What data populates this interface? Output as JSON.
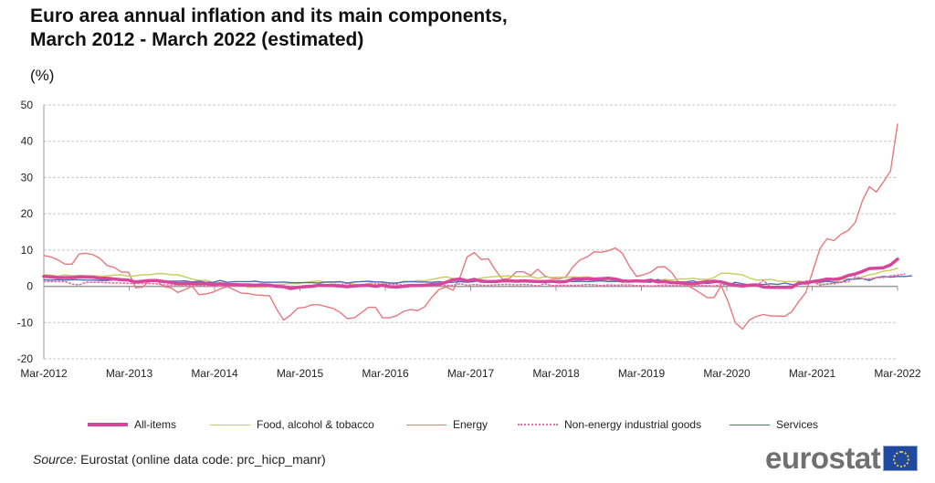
{
  "header": {
    "title_line1": "Euro area annual inflation and its main components,",
    "title_line2": "March 2012 - March 2022 (estimated)",
    "unit": "(%)"
  },
  "footer": {
    "source_label": "Source:",
    "source_text": " Eurostat (online data code: prc_hicp_manr)",
    "logo_text": "eurostat",
    "logo_icon": "eu-flag-icon"
  },
  "chart_data": {
    "type": "line",
    "title": "Euro area annual inflation and its main components, March 2012 - March 2022 (estimated)",
    "ylabel": "(%)",
    "xlabel": "",
    "ylim": [
      -20,
      50
    ],
    "yticks": [
      -20,
      -10,
      0,
      10,
      20,
      30,
      40,
      50
    ],
    "xtick_labels": [
      "Mar-2012",
      "Mar-2013",
      "Mar-2014",
      "Mar-2015",
      "Mar-2016",
      "Mar-2017",
      "Mar-2018",
      "Mar-2019",
      "Mar-2020",
      "Mar-2021",
      "Mar-2022"
    ],
    "x_start": "Mar-2012",
    "x_end": "Mar-2022",
    "frequency": "monthly",
    "grid": "horizontal dashed",
    "legend_position": "bottom",
    "series": [
      {
        "name": "All-items",
        "color": "#d6479b",
        "style": "thick",
        "values": [
          2.7,
          2.6,
          2.4,
          2.4,
          2.4,
          2.6,
          2.6,
          2.5,
          2.2,
          2.2,
          2.0,
          1.8,
          1.7,
          1.2,
          1.4,
          1.6,
          1.6,
          1.3,
          1.1,
          0.7,
          0.8,
          0.8,
          0.7,
          0.8,
          0.5,
          0.7,
          0.5,
          0.5,
          0.4,
          0.4,
          0.3,
          0.4,
          0.3,
          0.0,
          -0.1,
          -0.6,
          -0.3,
          -0.1,
          0.0,
          0.3,
          0.2,
          0.2,
          0.1,
          -0.1,
          0.1,
          0.2,
          0.3,
          0.0,
          0.3,
          -0.1,
          -0.2,
          0.0,
          0.2,
          0.2,
          0.3,
          0.5,
          0.6,
          1.1,
          1.8,
          2.0,
          1.5,
          1.9,
          1.4,
          1.3,
          1.3,
          1.5,
          1.5,
          1.4,
          1.5,
          1.4,
          1.3,
          1.3,
          1.4,
          1.2,
          1.3,
          2.0,
          2.0,
          2.1,
          2.0,
          2.1,
          2.2,
          2.0,
          1.5,
          1.4,
          1.5,
          1.4,
          1.7,
          1.2,
          1.3,
          1.0,
          1.0,
          0.8,
          0.7,
          1.0,
          1.3,
          1.4,
          1.2,
          0.7,
          0.3,
          0.1,
          0.3,
          0.4,
          -0.2,
          -0.3,
          -0.3,
          -0.3,
          -0.3,
          0.9,
          0.9,
          1.3,
          1.6,
          2.0,
          1.9,
          2.2,
          3.0,
          3.4,
          4.1,
          4.9,
          5.0,
          5.1,
          5.9,
          7.5
        ]
      },
      {
        "name": "Food, alcohol & tobacco",
        "color": "#c8cc5a",
        "style": "thin",
        "values": [
          3.2,
          3.1,
          2.8,
          3.2,
          2.9,
          3.0,
          2.9,
          2.9,
          2.8,
          2.9,
          3.1,
          3.2,
          2.7,
          2.9,
          3.2,
          3.2,
          3.5,
          3.5,
          3.2,
          3.2,
          2.6,
          2.0,
          1.6,
          1.7,
          1.0,
          0.7,
          0.1,
          0.2,
          0.3,
          -0.3,
          -0.1,
          -0.3,
          0.0,
          0.5,
          0.6,
          0.8,
          0.7,
          1.1,
          1.3,
          1.5,
          1.1,
          1.0,
          1.2,
          0.9,
          0.6,
          0.3,
          0.8,
          1.3,
          0.9,
          0.9,
          0.8,
          1.4,
          1.3,
          1.6,
          1.5,
          1.9,
          2.3,
          2.6,
          2.1,
          1.6,
          1.6,
          1.8,
          2.3,
          2.5,
          2.7,
          2.8,
          2.9,
          2.7,
          2.7,
          2.7,
          2.2,
          2.6,
          2.4,
          2.5,
          2.4,
          2.6,
          2.5,
          2.6,
          2.3,
          1.8,
          1.5,
          1.5,
          1.0,
          1.6,
          1.7,
          1.6,
          1.4,
          1.6,
          1.9,
          1.7,
          2.0,
          2.0,
          2.2,
          1.9,
          1.9,
          2.4,
          3.6,
          3.6,
          3.4,
          3.2,
          2.3,
          1.7,
          1.8,
          1.9,
          1.5,
          1.3,
          1.3,
          1.4,
          1.2,
          1.1,
          0.7,
          0.5,
          0.9,
          1.9,
          2.0,
          2.0,
          2.6,
          3.2,
          3.5,
          4.2,
          4.4,
          5.0
        ]
      },
      {
        "name": "Energy",
        "color": "#e8777f",
        "style": "thin",
        "values": [
          8.5,
          8.1,
          7.3,
          6.1,
          6.1,
          8.9,
          9.1,
          8.7,
          7.6,
          5.7,
          5.2,
          3.9,
          3.9,
          -0.4,
          -0.2,
          1.6,
          1.6,
          -0.1,
          -0.4,
          -1.7,
          -0.9,
          0.0,
          -2.3,
          -2.1,
          -1.6,
          -0.7,
          -0.1,
          -1.0,
          -1.9,
          -2.0,
          -2.4,
          -2.5,
          -2.6,
          -6.3,
          -9.3,
          -7.9,
          -6.0,
          -5.8,
          -5.1,
          -5.1,
          -5.6,
          -6.1,
          -7.2,
          -8.9,
          -8.7,
          -7.3,
          -5.8,
          -5.8,
          -8.7,
          -8.7,
          -8.1,
          -6.9,
          -6.4,
          -6.7,
          -5.6,
          -3.0,
          -0.9,
          -0.2,
          -1.1,
          2.6,
          8.1,
          9.3,
          7.4,
          7.6,
          4.5,
          1.9,
          2.2,
          4.0,
          4.0,
          3.0,
          4.7,
          2.9,
          2.2,
          2.0,
          2.6,
          5.4,
          7.3,
          8.1,
          9.5,
          9.4,
          9.8,
          10.6,
          9.1,
          5.5,
          2.7,
          3.2,
          3.9,
          5.3,
          5.4,
          3.8,
          1.0,
          0.5,
          -0.6,
          -1.8,
          -3.1,
          -3.1,
          0.2,
          -4.3,
          -10.0,
          -11.8,
          -9.3,
          -8.3,
          -7.8,
          -8.2,
          -8.2,
          -8.3,
          -7.0,
          -4.2,
          -1.7,
          4.3,
          10.4,
          13.1,
          12.6,
          14.4,
          15.4,
          17.6,
          23.5,
          27.5,
          26.0,
          28.8,
          31.8,
          44.7
        ]
      },
      {
        "name": "Non-energy industrial goods",
        "color": "#e06fa7",
        "style": "dotted",
        "values": [
          1.3,
          1.3,
          1.3,
          1.3,
          0.6,
          0.4,
          1.1,
          1.1,
          1.1,
          1.0,
          0.9,
          0.9,
          0.8,
          0.8,
          0.8,
          0.8,
          0.7,
          0.4,
          0.4,
          0.4,
          0.3,
          0.2,
          0.4,
          0.2,
          0.1,
          0.1,
          0.0,
          0.2,
          0.1,
          0.0,
          -0.1,
          0.1,
          -0.1,
          0.1,
          0.0,
          0.0,
          -0.1,
          0.2,
          0.3,
          0.4,
          0.4,
          0.6,
          0.5,
          0.7,
          0.3,
          0.4,
          0.5,
          0.7,
          0.5,
          0.6,
          0.5,
          0.4,
          0.5,
          0.4,
          0.3,
          0.3,
          0.3,
          0.3,
          0.3,
          0.7,
          0.3,
          0.5,
          0.3,
          0.3,
          0.4,
          0.5,
          0.5,
          0.4,
          0.5,
          0.4,
          0.1,
          0.7,
          0.2,
          0.3,
          0.3,
          0.3,
          0.3,
          0.5,
          0.4,
          0.2,
          0.4,
          0.3,
          0.4,
          0.4,
          0.2,
          0.2,
          0.1,
          0.2,
          0.4,
          0.2,
          0.3,
          0.3,
          0.3,
          0.3,
          0.2,
          0.1,
          0.5,
          0.3,
          0.2,
          0.3,
          0.2,
          0.3,
          1.6,
          -0.1,
          -0.2,
          -0.3,
          0.3,
          0.5,
          1.5,
          1.3,
          0.3,
          0.7,
          0.7,
          1.2,
          1.2,
          2.6,
          2.1,
          2.0,
          2.4,
          2.4,
          2.9,
          3.1,
          3.4
        ]
      },
      {
        "name": "Services",
        "color": "#4b6db8",
        "style": "thin",
        "values": [
          1.8,
          1.7,
          1.8,
          1.7,
          1.8,
          1.8,
          1.7,
          1.7,
          1.6,
          1.6,
          1.8,
          1.8,
          1.8,
          1.1,
          1.5,
          1.4,
          1.4,
          1.4,
          1.4,
          1.4,
          1.5,
          1.2,
          1.4,
          1.1,
          1.1,
          1.6,
          1.1,
          1.3,
          1.3,
          1.3,
          1.4,
          1.1,
          1.1,
          1.1,
          1.2,
          1.0,
          1.0,
          1.0,
          1.0,
          0.9,
          1.2,
          1.2,
          1.3,
          0.9,
          1.2,
          1.3,
          1.4,
          1.2,
          1.2,
          0.9,
          0.9,
          1.2,
          1.3,
          1.2,
          1.2,
          1.1,
          1.3,
          1.0,
          1.1,
          1.3,
          1.1,
          1.3,
          1.8,
          1.3,
          1.6,
          1.6,
          1.6,
          1.5,
          1.3,
          1.2,
          1.3,
          1.3,
          1.3,
          1.0,
          1.6,
          1.3,
          1.4,
          1.3,
          1.4,
          1.5,
          1.3,
          1.4,
          1.3,
          1.3,
          1.4,
          1.2,
          1.1,
          1.9,
          1.0,
          1.3,
          1.2,
          1.2,
          1.5,
          1.0,
          0.8,
          1.0,
          1.2,
          0.3,
          1.1,
          0.7,
          0.4,
          0.6,
          0.5,
          0.7,
          0.5,
          0.9,
          0.5,
          0.5,
          0.9,
          1.3,
          1.1,
          1.4,
          1.1,
          1.1,
          1.9,
          2.0,
          2.1,
          1.6,
          2.4,
          2.7,
          2.5,
          2.7,
          2.7,
          2.9
        ]
      }
    ]
  }
}
